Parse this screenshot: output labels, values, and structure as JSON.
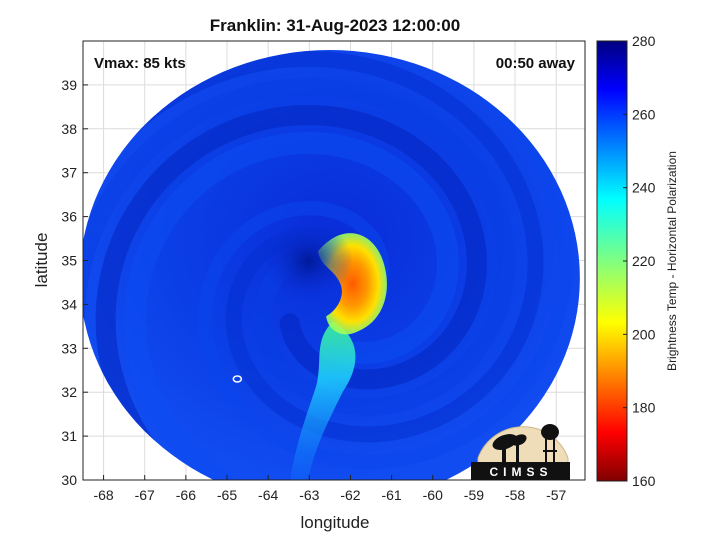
{
  "chart_data": {
    "type": "heatmap",
    "title": "Franklin: 31-Aug-2023 12:00:00",
    "xlabel": "longitude",
    "ylabel": "latitude",
    "xlim": [
      -68.5,
      -56.3
    ],
    "ylim": [
      30,
      40
    ],
    "xticks": [
      -68,
      -67,
      -66,
      -65,
      -64,
      -63,
      -62,
      -61,
      -60,
      -59,
      -58,
      -57
    ],
    "yticks": [
      30,
      31,
      32,
      33,
      34,
      35,
      36,
      37,
      38,
      39
    ],
    "grid": true,
    "annotations": {
      "vmax": "Vmax: 85 kts",
      "offset": "00:50 away"
    },
    "colorbar": {
      "label": "Brightness Temp - Horizontal Polarization",
      "range": [
        160,
        280
      ],
      "ticks": [
        160,
        180,
        200,
        220,
        240,
        260,
        280
      ],
      "colormap": "jet"
    },
    "storm_center": {
      "lon": -62.3,
      "lat": 34.3
    },
    "swath_center": {
      "lon": -62.5,
      "lat": 34.6
    },
    "logo": "CIMSS"
  }
}
